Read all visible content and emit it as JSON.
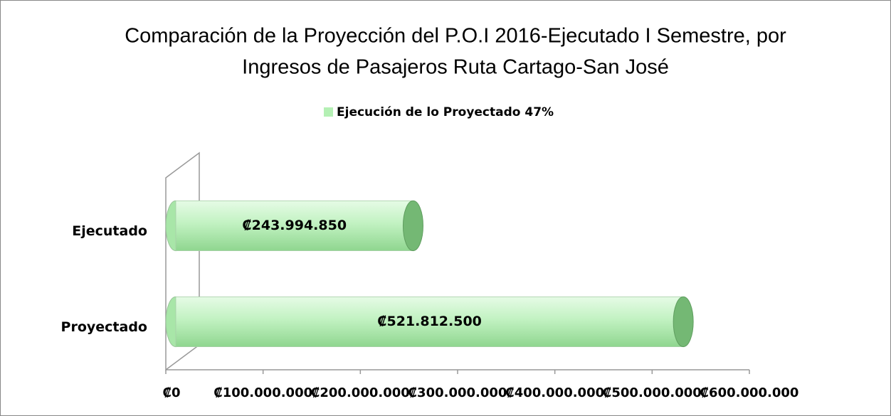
{
  "chart_data": {
    "type": "bar",
    "orientation": "horizontal",
    "title": [
      "Comparación de la Proyección del P.O.I 2016-Ejecutado I Semestre, por",
      "Ingresos de Pasajeros  Ruta Cartago-San José"
    ],
    "categories": [
      "Ejecutado",
      "Proyectado"
    ],
    "series": [
      {
        "name": "Ejecución de lo Proyectado 47%",
        "color": "#b4f0b4",
        "values": [
          243994850,
          521812500
        ],
        "value_labels": [
          "₡243.994.850",
          "₡521.812.500"
        ]
      }
    ],
    "xlim": [
      0,
      600000000
    ],
    "xticks": [
      {
        "value": 0,
        "label": "₡0"
      },
      {
        "value": 100000000,
        "label": "₡100.000.000"
      },
      {
        "value": 200000000,
        "label": "₡200.000.000"
      },
      {
        "value": 300000000,
        "label": "₡300.000.000"
      },
      {
        "value": 400000000,
        "label": "₡400.000.000"
      },
      {
        "value": 500000000,
        "label": "₡500.000.000"
      },
      {
        "value": 600000000,
        "label": "₡600.000.000"
      }
    ],
    "legend": "top"
  }
}
